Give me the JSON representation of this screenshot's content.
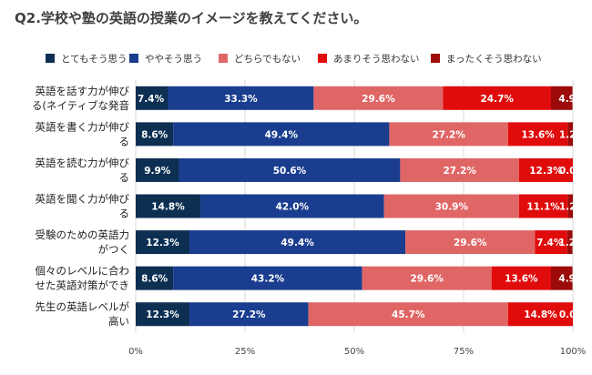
{
  "chart_data": {
    "type": "bar",
    "orientation": "horizontal",
    "stacked": true,
    "percent_stacked": true,
    "title": "Q2.学校や塾の英語の授業のイメージを教えてください。",
    "categories": [
      [
        "英語を話す力が伸び",
        "る(ネイティブな発音"
      ],
      [
        "英語を書く力が伸び",
        "る"
      ],
      [
        "英語を読む力が伸び",
        "る"
      ],
      [
        "英語を聞く力が伸び",
        "る"
      ],
      [
        "受験のための英語力",
        "がつく"
      ],
      [
        "個々のレベルに合わ",
        "せた英語対策ができ"
      ],
      [
        "先生の英語レベルが",
        "高い"
      ]
    ],
    "series": [
      {
        "name": "とてもそう思う",
        "color": "#0c2f52",
        "values": [
          7.4,
          8.6,
          9.9,
          14.8,
          12.3,
          8.6,
          12.3
        ]
      },
      {
        "name": "ややそう思う",
        "color": "#1a3d8f",
        "values": [
          33.3,
          49.4,
          50.6,
          42.0,
          49.4,
          43.2,
          27.2
        ]
      },
      {
        "name": "どちらでもない",
        "color": "#e06666",
        "values": [
          29.6,
          27.2,
          27.2,
          30.9,
          29.6,
          29.6,
          45.7
        ]
      },
      {
        "name": "あまりそう思わない",
        "color": "#e00c0c",
        "values": [
          24.7,
          13.6,
          12.3,
          11.1,
          7.4,
          13.6,
          14.8
        ]
      },
      {
        "name": "まったくそう思わない",
        "color": "#9c0a0a",
        "values": [
          4.9,
          1.2,
          0.0,
          1.2,
          1.2,
          4.9,
          0.0
        ]
      }
    ],
    "x_ticks": [
      "0%",
      "25%",
      "50%",
      "75%",
      "100%"
    ],
    "xlim": [
      0,
      100
    ],
    "legend_position": "top",
    "grid": true
  }
}
